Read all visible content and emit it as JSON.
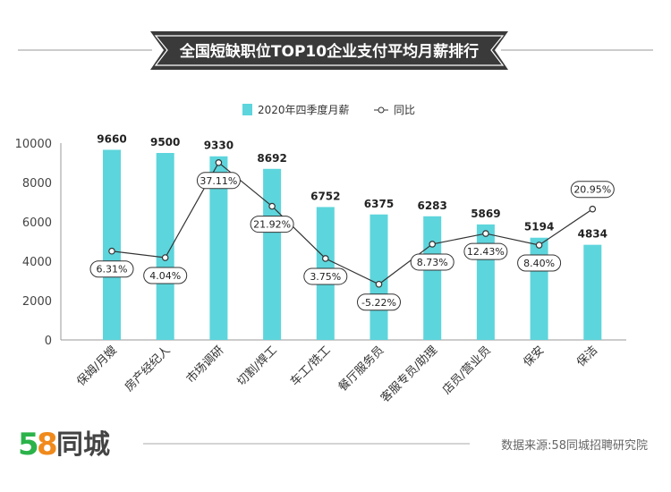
{
  "title": "全国短缺职位TOP10企业支付平均月薪排行",
  "footer": {
    "logo_text": "58同城",
    "source": "数据来源:58同城招聘研究院"
  },
  "colors": {
    "bar": "#5dd5dc",
    "line": "#333333",
    "banner": "#3a3a3a",
    "logo_5": "#2bb34a",
    "logo_8": "#f08a1c"
  },
  "chart_data": {
    "type": "bar",
    "title": "全国短缺职位TOP10企业支付平均月薪排行",
    "legend_placement": "top",
    "grid": false,
    "categories": [
      "保姆/月嫂",
      "房产经纪人",
      "市场调研",
      "切割/焊工",
      "车工/铣工",
      "餐厅服务员",
      "客服专员/助理",
      "店员/营业员",
      "保安",
      "保洁"
    ],
    "ylim": [
      0,
      10000
    ],
    "yticks": [
      0,
      2000,
      4000,
      6000,
      8000,
      10000
    ],
    "series": [
      {
        "name": "2020年四季度月薪",
        "type": "bar",
        "values": [
          9660,
          9500,
          9330,
          8692,
          6752,
          6375,
          6283,
          5869,
          5194,
          4834
        ]
      },
      {
        "name": "同比",
        "type": "line",
        "unit": "%",
        "y2lim": [
          -24.6,
          43.9
        ],
        "values": [
          6.31,
          4.04,
          37.11,
          21.92,
          3.75,
          -5.22,
          8.73,
          12.43,
          8.4,
          20.95
        ],
        "labels": [
          "6.31%",
          "4.04%",
          "37.11%",
          "21.92%",
          "3.75%",
          "-5.22%",
          "8.73%",
          "12.43%",
          "8.40%",
          "20.95%"
        ]
      }
    ]
  }
}
